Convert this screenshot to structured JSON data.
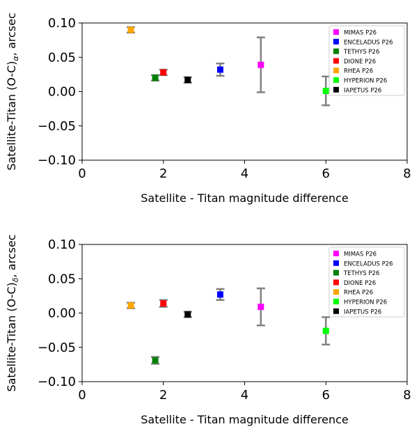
{
  "chart_data": [
    {
      "type": "scatter",
      "xlabel": "Satellite - Titan magnitude difference",
      "ylabel": "Satellite-Titan (O-C)α, arcsec",
      "ylabel_main": "Satellite-Titan (O-C)",
      "ylabel_sub": "α",
      "ylabel_tail": ", arcsec",
      "xlim": [
        0,
        8
      ],
      "ylim": [
        -0.1,
        0.1
      ],
      "xticks": [
        0,
        2,
        4,
        6,
        8
      ],
      "xtick_labels": [
        "0",
        "2",
        "4",
        "6",
        "8"
      ],
      "yticks": [
        0.1,
        0.05,
        0,
        -0.05,
        -0.1
      ],
      "ytick_labels": [
        "0.10",
        "0.05",
        "0.00",
        "−0.05",
        "−0.10"
      ],
      "grid": false,
      "legend_position": "top-right",
      "series": [
        {
          "name": "MIMAS P26",
          "color": "#ff00ff",
          "x": 4.4,
          "y": 0.039,
          "err": 0.04
        },
        {
          "name": "ENCELADUS P26",
          "color": "#0000ff",
          "x": 3.4,
          "y": 0.032,
          "err": 0.009
        },
        {
          "name": "TETHYS P26",
          "color": "#008000",
          "x": 1.8,
          "y": 0.02,
          "err": 0.004
        },
        {
          "name": "DIONE P26",
          "color": "#ff0000",
          "x": 2.0,
          "y": 0.028,
          "err": 0.004
        },
        {
          "name": "RHEA P26",
          "color": "#ffa500",
          "x": 1.2,
          "y": 0.09,
          "err": 0.004
        },
        {
          "name": "HYPERION P26",
          "color": "#00ff00",
          "x": 6.0,
          "y": 0.001,
          "err": 0.021
        },
        {
          "name": "IAPETUS P26",
          "color": "#000000",
          "x": 2.6,
          "y": 0.017,
          "err": 0.004
        }
      ]
    },
    {
      "type": "scatter",
      "xlabel": "Satellite - Titan magnitude difference",
      "ylabel": "Satellite-Titan (O-C)δ, arcsec",
      "ylabel_main": "Satellite-Titan (O-C)",
      "ylabel_sub": "δ",
      "ylabel_tail": ", arcsec",
      "xlim": [
        0,
        8
      ],
      "ylim": [
        -0.1,
        0.1
      ],
      "xticks": [
        0,
        2,
        4,
        6,
        8
      ],
      "xtick_labels": [
        "0",
        "2",
        "4",
        "6",
        "8"
      ],
      "yticks": [
        0.1,
        0.05,
        0,
        -0.05,
        -0.1
      ],
      "ytick_labels": [
        "0.10",
        "0.05",
        "0.00",
        "−0.05",
        "−0.10"
      ],
      "grid": false,
      "legend_position": "top-right",
      "series": [
        {
          "name": "MIMAS P26",
          "color": "#ff00ff",
          "x": 4.4,
          "y": 0.009,
          "err": 0.027
        },
        {
          "name": "ENCELADUS P26",
          "color": "#0000ff",
          "x": 3.4,
          "y": 0.027,
          "err": 0.008
        },
        {
          "name": "TETHYS P26",
          "color": "#008000",
          "x": 1.8,
          "y": -0.069,
          "err": 0.005
        },
        {
          "name": "DIONE P26",
          "color": "#ff0000",
          "x": 2.0,
          "y": 0.014,
          "err": 0.005
        },
        {
          "name": "RHEA P26",
          "color": "#ffa500",
          "x": 1.2,
          "y": 0.011,
          "err": 0.004
        },
        {
          "name": "HYPERION P26",
          "color": "#00ff00",
          "x": 6.0,
          "y": -0.026,
          "err": 0.02
        },
        {
          "name": "IAPETUS P26",
          "color": "#000000",
          "x": 2.6,
          "y": -0.002,
          "err": 0.004
        }
      ]
    }
  ]
}
